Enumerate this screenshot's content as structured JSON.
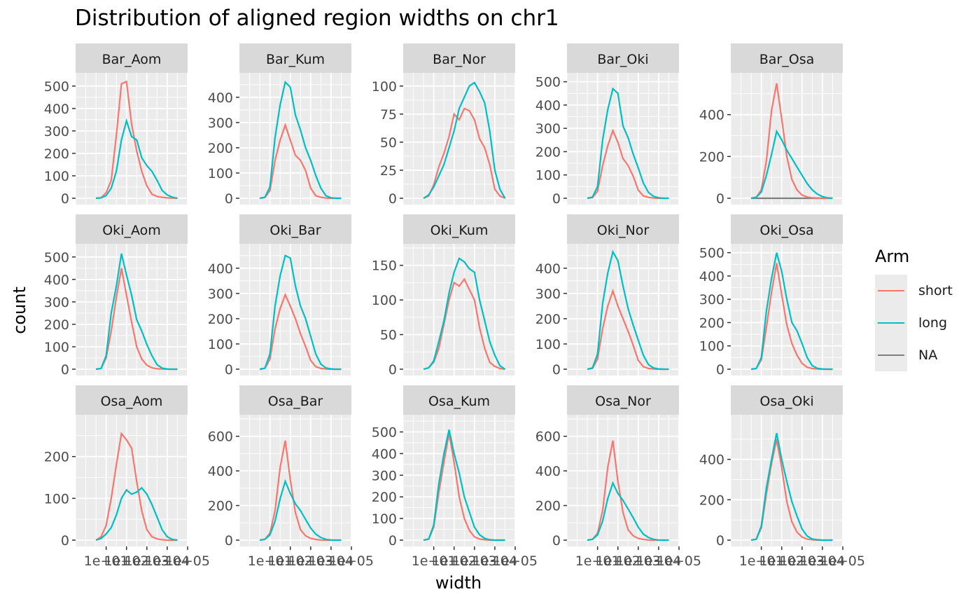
{
  "chart_data": {
    "type": "line",
    "title": "Distribution of aligned region widths on chr1",
    "xlabel": "width",
    "ylabel": "count",
    "x_scale": "log10",
    "xlim": [
      1,
      100000
    ],
    "x_ticks": [
      10,
      100,
      1000,
      10000,
      100000
    ],
    "x_tick_labels": [
      "1e+01",
      "1e+02",
      "1e+03",
      "1e+04",
      "1e+05"
    ],
    "facet_grid": {
      "rows": 3,
      "cols": 5
    },
    "legend": {
      "title": "Arm",
      "position": "right",
      "entries": [
        {
          "name": "short",
          "color": "#F8766D"
        },
        {
          "name": "long",
          "color": "#00BFC4"
        },
        {
          "name": "NA",
          "color": "#7F7F7F"
        }
      ]
    },
    "grid": true,
    "x_log_points": [
      0.5,
      0.75,
      1.0,
      1.25,
      1.5,
      1.75,
      2.0,
      2.25,
      2.5,
      2.75,
      3.0,
      3.25,
      3.5,
      3.75,
      4.0,
      4.25,
      4.5
    ],
    "panels": [
      {
        "strip": "Bar_Aom",
        "yticks": [
          0,
          100,
          200,
          300,
          400,
          500
        ],
        "ymax": 540,
        "short": [
          0,
          2,
          25,
          80,
          280,
          510,
          520,
          330,
          210,
          120,
          55,
          18,
          8,
          4,
          2,
          1,
          0
        ],
        "long": [
          0,
          2,
          12,
          45,
          120,
          260,
          345,
          275,
          260,
          180,
          145,
          120,
          80,
          35,
          15,
          5,
          0
        ]
      },
      {
        "strip": "Bar_Kum",
        "yticks": [
          0,
          100,
          200,
          300,
          400
        ],
        "ymax": 480,
        "short": [
          0,
          3,
          30,
          150,
          230,
          290,
          230,
          170,
          150,
          110,
          40,
          10,
          4,
          1,
          0,
          0,
          0
        ],
        "long": [
          0,
          4,
          45,
          240,
          370,
          460,
          440,
          330,
          270,
          200,
          150,
          90,
          40,
          10,
          2,
          0,
          0
        ]
      },
      {
        "strip": "Bar_Nor",
        "yticks": [
          0,
          25,
          50,
          75,
          100
        ],
        "ymax": 108,
        "short": [
          0,
          2,
          12,
          28,
          40,
          55,
          75,
          70,
          80,
          78,
          70,
          53,
          45,
          30,
          8,
          2,
          0
        ],
        "long": [
          0,
          3,
          10,
          20,
          30,
          45,
          60,
          80,
          90,
          100,
          103,
          95,
          85,
          60,
          25,
          8,
          0
        ]
      },
      {
        "strip": "Bar_Oki",
        "yticks": [
          0,
          100,
          200,
          300,
          400,
          500
        ],
        "ymax": 520,
        "short": [
          0,
          3,
          30,
          140,
          225,
          290,
          240,
          170,
          140,
          95,
          35,
          10,
          4,
          1,
          0,
          0,
          0
        ],
        "long": [
          0,
          5,
          50,
          250,
          380,
          470,
          450,
          310,
          260,
          190,
          130,
          65,
          25,
          8,
          2,
          0,
          0
        ]
      },
      {
        "strip": "Bar_Osa",
        "yticks": [
          0,
          200,
          400
        ],
        "ymax": 580,
        "has_na": true,
        "short": [
          0,
          5,
          40,
          180,
          420,
          550,
          380,
          200,
          90,
          40,
          15,
          6,
          2,
          1,
          0,
          0,
          0
        ],
        "long": [
          0,
          5,
          30,
          110,
          210,
          320,
          280,
          230,
          190,
          150,
          110,
          70,
          40,
          20,
          8,
          2,
          0
        ],
        "na": [
          0,
          0,
          0,
          0,
          0,
          0,
          0,
          0,
          0,
          0,
          0,
          0,
          0,
          0,
          0,
          0,
          0
        ]
      },
      {
        "strip": "Oki_Aom",
        "yticks": [
          0,
          100,
          200,
          300,
          400,
          500
        ],
        "ymax": 540,
        "short": [
          0,
          3,
          50,
          170,
          320,
          450,
          330,
          210,
          100,
          45,
          18,
          6,
          2,
          1,
          0,
          0,
          0
        ],
        "long": [
          0,
          3,
          60,
          250,
          370,
          515,
          420,
          330,
          220,
          170,
          110,
          60,
          20,
          5,
          1,
          0,
          0
        ]
      },
      {
        "strip": "Oki_Bar",
        "yticks": [
          0,
          100,
          200,
          300,
          400
        ],
        "ymax": 480,
        "short": [
          0,
          3,
          40,
          160,
          240,
          295,
          250,
          200,
          140,
          90,
          35,
          10,
          3,
          1,
          0,
          0,
          0
        ],
        "long": [
          0,
          4,
          60,
          250,
          370,
          450,
          440,
          330,
          250,
          200,
          130,
          60,
          20,
          5,
          1,
          0,
          0
        ]
      },
      {
        "strip": "Oki_Kum",
        "yticks": [
          0,
          50,
          100,
          150
        ],
        "ymax": 175,
        "short": [
          0,
          2,
          10,
          30,
          65,
          100,
          125,
          120,
          130,
          115,
          100,
          60,
          30,
          10,
          4,
          1,
          0
        ],
        "long": [
          0,
          2,
          12,
          40,
          70,
          110,
          140,
          160,
          155,
          145,
          140,
          100,
          70,
          40,
          20,
          5,
          0
        ]
      },
      {
        "strip": "Oki_Nor",
        "yticks": [
          0,
          100,
          200,
          300,
          400
        ],
        "ymax": 480,
        "short": [
          0,
          3,
          40,
          160,
          250,
          310,
          250,
          200,
          150,
          95,
          35,
          10,
          3,
          1,
          0,
          0,
          0
        ],
        "long": [
          0,
          5,
          60,
          260,
          380,
          465,
          430,
          330,
          240,
          175,
          115,
          55,
          18,
          5,
          1,
          0,
          0
        ]
      },
      {
        "strip": "Oki_Osa",
        "yticks": [
          0,
          100,
          200,
          300,
          400,
          500
        ],
        "ymax": 520,
        "short": [
          0,
          3,
          40,
          180,
          330,
          455,
          320,
          190,
          110,
          60,
          25,
          8,
          3,
          1,
          0,
          0,
          0
        ],
        "long": [
          0,
          3,
          50,
          250,
          390,
          500,
          420,
          300,
          200,
          165,
          110,
          50,
          15,
          4,
          1,
          0,
          0
        ]
      },
      {
        "strip": "Osa_Aom",
        "yticks": [
          0,
          100,
          200
        ],
        "ymax": 290,
        "short": [
          0,
          8,
          35,
          100,
          180,
          255,
          240,
          220,
          140,
          70,
          25,
          8,
          3,
          1,
          0,
          0,
          0
        ],
        "long": [
          0,
          4,
          15,
          30,
          60,
          100,
          120,
          110,
          115,
          125,
          110,
          85,
          55,
          25,
          8,
          2,
          0
        ]
      },
      {
        "strip": "Osa_Bar",
        "yticks": [
          0,
          200,
          400,
          600
        ],
        "ymax": 700,
        "short": [
          0,
          5,
          40,
          170,
          420,
          575,
          350,
          160,
          60,
          25,
          10,
          4,
          1,
          0,
          0,
          0,
          0
        ],
        "long": [
          0,
          5,
          30,
          110,
          240,
          340,
          270,
          210,
          170,
          120,
          70,
          35,
          15,
          5,
          1,
          0,
          0
        ]
      },
      {
        "strip": "Osa_Kum",
        "yticks": [
          0,
          100,
          200,
          300,
          400,
          500
        ],
        "ymax": 560,
        "short": [
          0,
          5,
          60,
          220,
          360,
          495,
          360,
          200,
          100,
          45,
          15,
          5,
          2,
          0,
          0,
          0,
          0
        ],
        "long": [
          0,
          5,
          70,
          260,
          400,
          510,
          400,
          310,
          200,
          130,
          60,
          25,
          8,
          2,
          0,
          0,
          0
        ]
      },
      {
        "strip": "Osa_Nor",
        "yticks": [
          0,
          200,
          400,
          600
        ],
        "ymax": 700,
        "short": [
          0,
          5,
          40,
          170,
          420,
          575,
          340,
          160,
          60,
          25,
          10,
          4,
          1,
          0,
          0,
          0,
          0
        ],
        "long": [
          0,
          5,
          30,
          110,
          240,
          330,
          270,
          230,
          180,
          130,
          75,
          35,
          15,
          5,
          1,
          0,
          0
        ]
      },
      {
        "strip": "Osa_Oki",
        "yticks": [
          0,
          200,
          400
        ],
        "ymax": 600,
        "short": [
          0,
          5,
          60,
          230,
          380,
          500,
          360,
          190,
          90,
          40,
          15,
          5,
          2,
          0,
          0,
          0,
          0
        ],
        "long": [
          0,
          5,
          70,
          260,
          400,
          530,
          400,
          290,
          190,
          120,
          55,
          20,
          6,
          2,
          0,
          0,
          0
        ]
      }
    ]
  }
}
